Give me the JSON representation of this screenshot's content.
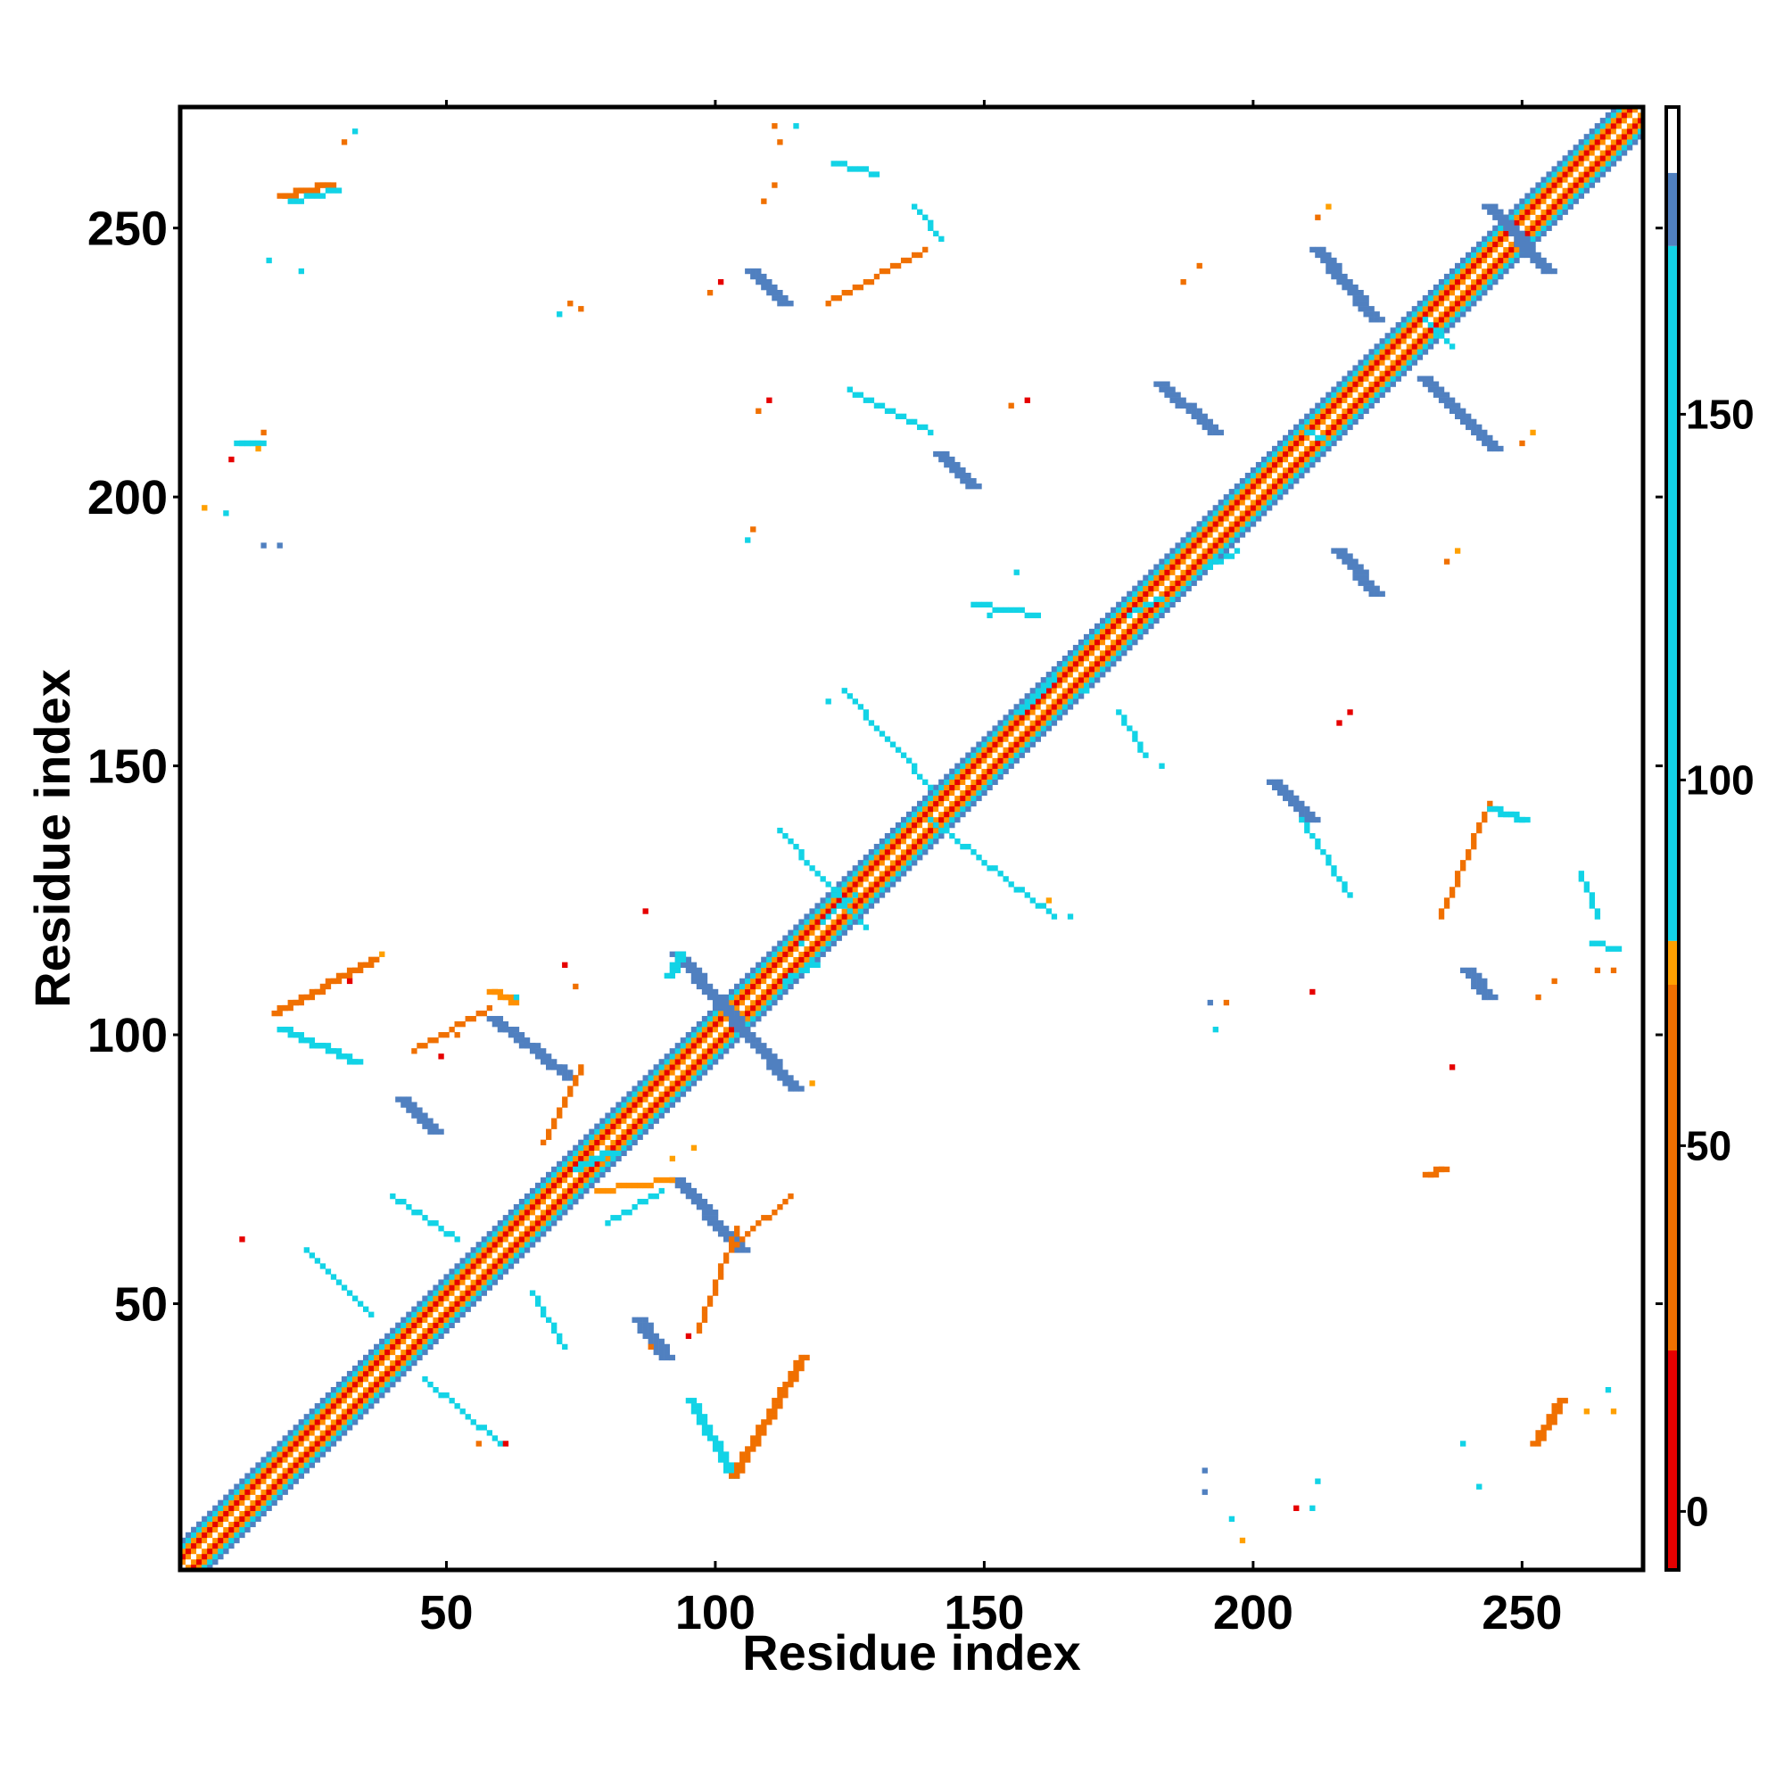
{
  "chart_data": {
    "type": "heatmap",
    "title": "",
    "xlabel": "Residue index",
    "ylabel": "Residue index",
    "xlim": [
      1,
      272
    ],
    "ylim": [
      1,
      272
    ],
    "xticks": [
      50,
      100,
      150,
      200,
      250
    ],
    "yticks": [
      50,
      100,
      150,
      200,
      250
    ],
    "colorbar": {
      "ticks": [
        0,
        50,
        100,
        150
      ],
      "range": [
        -8,
        192
      ],
      "bins": [
        {
          "from": -8,
          "to": 22,
          "color": "#e60000"
        },
        {
          "from": 22,
          "to": 72,
          "color": "#f07000"
        },
        {
          "from": 72,
          "to": 78,
          "color": "#ffa000"
        },
        {
          "from": 78,
          "to": 173,
          "color": "#12d3e6"
        },
        {
          "from": 173,
          "to": 183,
          "color": "#5080c0"
        },
        {
          "from": 183,
          "to": 192,
          "color": "#ffffff"
        }
      ]
    },
    "diagonal_band": {
      "from": 1,
      "to": 272,
      "color_by_offset": [
        "#ffffff",
        "#ff9000",
        "#e60000",
        "#ff9000",
        "#12d3e6",
        "#5080c0"
      ]
    },
    "segments": [
      {
        "x1": 92,
        "y1": 115,
        "x2": 114,
        "y2": 90,
        "color": "#5080c0",
        "width": 3
      },
      {
        "x1": 58,
        "y1": 103,
        "x2": 72,
        "y2": 92,
        "color": "#5080c0",
        "width": 3
      },
      {
        "x1": 92,
        "y1": 73,
        "x2": 104,
        "y2": 60,
        "color": "#5080c0",
        "width": 3
      },
      {
        "x1": 211,
        "y1": 246,
        "x2": 222,
        "y2": 233,
        "color": "#5080c0",
        "width": 3
      },
      {
        "x1": 231,
        "y1": 222,
        "x2": 244,
        "y2": 209,
        "color": "#5080c0",
        "width": 3
      },
      {
        "x1": 182,
        "y1": 221,
        "x2": 192,
        "y2": 212,
        "color": "#5080c0",
        "width": 3
      },
      {
        "x1": 215,
        "y1": 190,
        "x2": 222,
        "y2": 182,
        "color": "#5080c0",
        "width": 3
      },
      {
        "x1": 243,
        "y1": 254,
        "x2": 254,
        "y2": 242,
        "color": "#5080c0",
        "width": 3
      },
      {
        "x1": 203,
        "y1": 147,
        "x2": 210,
        "y2": 140,
        "color": "#5080c0",
        "width": 3
      },
      {
        "x1": 141,
        "y1": 208,
        "x2": 147,
        "y2": 202,
        "color": "#5080c0",
        "width": 3
      },
      {
        "x1": 106,
        "y1": 242,
        "x2": 112,
        "y2": 236,
        "color": "#5080c0",
        "width": 3
      },
      {
        "x1": 41,
        "y1": 88,
        "x2": 47,
        "y2": 82,
        "color": "#5080c0",
        "width": 3
      },
      {
        "x1": 85,
        "y1": 47,
        "x2": 90,
        "y2": 40,
        "color": "#5080c0",
        "width": 3
      },
      {
        "x1": 239,
        "y1": 112,
        "x2": 243,
        "y2": 107,
        "color": "#5080c0",
        "width": 3
      },
      {
        "x1": 18,
        "y1": 104,
        "x2": 36,
        "y2": 114,
        "color": "#f07000",
        "width": 2
      },
      {
        "x1": 19,
        "y1": 101,
        "x2": 33,
        "y2": 95,
        "color": "#12d3e6",
        "width": 2
      },
      {
        "x1": 44,
        "y1": 97,
        "x2": 58,
        "y2": 105,
        "color": "#f07000",
        "width": 1
      },
      {
        "x1": 91,
        "y1": 111,
        "x2": 93,
        "y2": 115,
        "color": "#12d3e6",
        "width": 2
      },
      {
        "x1": 68,
        "y1": 80,
        "x2": 75,
        "y2": 94,
        "color": "#f07000",
        "width": 1
      },
      {
        "x1": 58,
        "y1": 108,
        "x2": 62,
        "y2": 106,
        "color": "#ff9000",
        "width": 2
      },
      {
        "x1": 80,
        "y1": 65,
        "x2": 90,
        "y2": 71,
        "color": "#12d3e6",
        "width": 1
      },
      {
        "x1": 78,
        "y1": 71,
        "x2": 92,
        "y2": 73,
        "color": "#ff9000",
        "width": 1
      },
      {
        "x1": 104,
        "y1": 61,
        "x2": 114,
        "y2": 70,
        "color": "#f07000",
        "width": 1
      },
      {
        "x1": 97,
        "y1": 45,
        "x2": 104,
        "y2": 64,
        "color": "#f07000",
        "width": 1
      },
      {
        "x1": 95,
        "y1": 32,
        "x2": 103,
        "y2": 18,
        "color": "#12d3e6",
        "width": 2
      },
      {
        "x1": 103,
        "y1": 18,
        "x2": 116,
        "y2": 40,
        "color": "#f07000",
        "width": 2
      },
      {
        "x1": 46,
        "y1": 36,
        "x2": 60,
        "y2": 24,
        "color": "#12d3e6",
        "width": 1
      },
      {
        "x1": 24,
        "y1": 60,
        "x2": 36,
        "y2": 48,
        "color": "#12d3e6",
        "width": 1
      },
      {
        "x1": 40,
        "y1": 70,
        "x2": 52,
        "y2": 62,
        "color": "#12d3e6",
        "width": 1
      },
      {
        "x1": 66,
        "y1": 52,
        "x2": 72,
        "y2": 42,
        "color": "#12d3e6",
        "width": 1
      },
      {
        "x1": 124,
        "y1": 164,
        "x2": 141,
        "y2": 145,
        "color": "#12d3e6",
        "width": 1
      },
      {
        "x1": 140,
        "y1": 140,
        "x2": 163,
        "y2": 122,
        "color": "#12d3e6",
        "width": 1
      },
      {
        "x1": 148,
        "y1": 180,
        "x2": 160,
        "y2": 178,
        "color": "#12d3e6",
        "width": 1
      },
      {
        "x1": 175,
        "y1": 160,
        "x2": 180,
        "y2": 152,
        "color": "#12d3e6",
        "width": 1
      },
      {
        "x1": 125,
        "y1": 220,
        "x2": 140,
        "y2": 212,
        "color": "#12d3e6",
        "width": 1
      },
      {
        "x1": 122,
        "y1": 262,
        "x2": 130,
        "y2": 260,
        "color": "#12d3e6",
        "width": 1
      },
      {
        "x1": 137,
        "y1": 254,
        "x2": 142,
        "y2": 248,
        "color": "#12d3e6",
        "width": 1
      },
      {
        "x1": 121,
        "y1": 236,
        "x2": 139,
        "y2": 246,
        "color": "#f07000",
        "width": 1
      },
      {
        "x1": 112,
        "y1": 138,
        "x2": 128,
        "y2": 120,
        "color": "#12d3e6",
        "width": 1
      },
      {
        "x1": 209,
        "y1": 140,
        "x2": 218,
        "y2": 126,
        "color": "#12d3e6",
        "width": 1
      },
      {
        "x1": 235,
        "y1": 122,
        "x2": 244,
        "y2": 143,
        "color": "#f07000",
        "width": 1
      },
      {
        "x1": 244,
        "y1": 142,
        "x2": 250,
        "y2": 140,
        "color": "#12d3e6",
        "width": 2
      },
      {
        "x1": 261,
        "y1": 130,
        "x2": 264,
        "y2": 122,
        "color": "#12d3e6",
        "width": 1
      },
      {
        "x1": 263,
        "y1": 117,
        "x2": 268,
        "y2": 116,
        "color": "#12d3e6",
        "width": 1
      },
      {
        "x1": 252,
        "y1": 24,
        "x2": 257,
        "y2": 32,
        "color": "#f07000",
        "width": 2
      },
      {
        "x1": 11,
        "y1": 210,
        "x2": 15,
        "y2": 210,
        "color": "#12d3e6",
        "width": 2
      },
      {
        "x1": 19,
        "y1": 256,
        "x2": 28,
        "y2": 258,
        "color": "#f07000",
        "width": 2
      },
      {
        "x1": 21,
        "y1": 255,
        "x2": 30,
        "y2": 257,
        "color": "#12d3e6",
        "width": 1
      },
      {
        "x1": 232,
        "y1": 74,
        "x2": 235,
        "y2": 75,
        "color": "#f07000",
        "width": 2
      },
      {
        "x1": 190,
        "y1": 186,
        "x2": 197,
        "y2": 190,
        "color": "#12d3e6",
        "width": 1
      },
      {
        "x1": 209,
        "y1": 213,
        "x2": 214,
        "y2": 210,
        "color": "#12d3e6",
        "width": 1
      },
      {
        "x1": 232,
        "y1": 233,
        "x2": 237,
        "y2": 228,
        "color": "#12d3e6",
        "width": 1
      },
      {
        "x1": 74,
        "y1": 75,
        "x2": 80,
        "y2": 78,
        "color": "#12d3e6",
        "width": 2
      },
      {
        "x1": 120,
        "y1": 121,
        "x2": 126,
        "y2": 126,
        "color": "#12d3e6",
        "width": 1
      },
      {
        "x1": 113,
        "y1": 110,
        "x2": 119,
        "y2": 113,
        "color": "#12d3e6",
        "width": 1
      },
      {
        "x1": 157,
        "y1": 160,
        "x2": 163,
        "y2": 166,
        "color": "#12d3e6",
        "width": 1
      },
      {
        "x1": 177,
        "y1": 178,
        "x2": 183,
        "y2": 181,
        "color": "#12d3e6",
        "width": 1
      }
    ],
    "points": [
      {
        "x": 5,
        "y": 198,
        "color": "#ffa000"
      },
      {
        "x": 9,
        "y": 197,
        "color": "#12d3e6"
      },
      {
        "x": 10,
        "y": 207,
        "color": "#e60000"
      },
      {
        "x": 15,
        "y": 209,
        "color": "#ffa000"
      },
      {
        "x": 16,
        "y": 212,
        "color": "#f07000"
      },
      {
        "x": 16,
        "y": 191,
        "color": "#5080c0"
      },
      {
        "x": 19,
        "y": 191,
        "color": "#5080c0"
      },
      {
        "x": 17,
        "y": 244,
        "color": "#12d3e6"
      },
      {
        "x": 23,
        "y": 242,
        "color": "#12d3e6"
      },
      {
        "x": 31,
        "y": 266,
        "color": "#f07000"
      },
      {
        "x": 33,
        "y": 268,
        "color": "#12d3e6"
      },
      {
        "x": 73,
        "y": 236,
        "color": "#f07000"
      },
      {
        "x": 75,
        "y": 235,
        "color": "#f07000"
      },
      {
        "x": 71,
        "y": 234,
        "color": "#12d3e6"
      },
      {
        "x": 107,
        "y": 194,
        "color": "#f07000"
      },
      {
        "x": 106,
        "y": 192,
        "color": "#12d3e6"
      },
      {
        "x": 108,
        "y": 216,
        "color": "#f07000"
      },
      {
        "x": 110,
        "y": 218,
        "color": "#e60000"
      },
      {
        "x": 99,
        "y": 238,
        "color": "#f07000"
      },
      {
        "x": 101,
        "y": 240,
        "color": "#e60000"
      },
      {
        "x": 109,
        "y": 255,
        "color": "#f07000"
      },
      {
        "x": 111,
        "y": 258,
        "color": "#f07000"
      },
      {
        "x": 112,
        "y": 266,
        "color": "#f07000"
      },
      {
        "x": 115,
        "y": 269,
        "color": "#12d3e6"
      },
      {
        "x": 111,
        "y": 269,
        "color": "#f07000"
      },
      {
        "x": 155,
        "y": 217,
        "color": "#f07000"
      },
      {
        "x": 158,
        "y": 218,
        "color": "#e60000"
      },
      {
        "x": 156,
        "y": 186,
        "color": "#12d3e6"
      },
      {
        "x": 187,
        "y": 240,
        "color": "#f07000"
      },
      {
        "x": 190,
        "y": 243,
        "color": "#f07000"
      },
      {
        "x": 212,
        "y": 252,
        "color": "#f07000"
      },
      {
        "x": 214,
        "y": 254,
        "color": "#ffa000"
      },
      {
        "x": 216,
        "y": 158,
        "color": "#e60000"
      },
      {
        "x": 218,
        "y": 160,
        "color": "#e60000"
      },
      {
        "x": 183,
        "y": 150,
        "color": "#12d3e6"
      },
      {
        "x": 211,
        "y": 108,
        "color": "#e60000"
      },
      {
        "x": 192,
        "y": 106,
        "color": "#5080c0"
      },
      {
        "x": 195,
        "y": 106,
        "color": "#f07000"
      },
      {
        "x": 193,
        "y": 101,
        "color": "#12d3e6"
      },
      {
        "x": 237,
        "y": 94,
        "color": "#e60000"
      },
      {
        "x": 253,
        "y": 107,
        "color": "#f07000"
      },
      {
        "x": 256,
        "y": 110,
        "color": "#f07000"
      },
      {
        "x": 264,
        "y": 112,
        "color": "#f07000"
      },
      {
        "x": 267,
        "y": 112,
        "color": "#f07000"
      },
      {
        "x": 236,
        "y": 188,
        "color": "#f07000"
      },
      {
        "x": 238,
        "y": 190,
        "color": "#ffa000"
      },
      {
        "x": 252,
        "y": 212,
        "color": "#ffa000"
      },
      {
        "x": 250,
        "y": 210,
        "color": "#f07000"
      },
      {
        "x": 191,
        "y": 19,
        "color": "#5080c0"
      },
      {
        "x": 191,
        "y": 15,
        "color": "#5080c0"
      },
      {
        "x": 196,
        "y": 10,
        "color": "#12d3e6"
      },
      {
        "x": 198,
        "y": 6,
        "color": "#ffa000"
      },
      {
        "x": 208,
        "y": 12,
        "color": "#e60000"
      },
      {
        "x": 211,
        "y": 12,
        "color": "#12d3e6"
      },
      {
        "x": 212,
        "y": 17,
        "color": "#12d3e6"
      },
      {
        "x": 239,
        "y": 24,
        "color": "#12d3e6"
      },
      {
        "x": 242,
        "y": 16,
        "color": "#12d3e6"
      },
      {
        "x": 262,
        "y": 30,
        "color": "#ffa000"
      },
      {
        "x": 266,
        "y": 34,
        "color": "#12d3e6"
      },
      {
        "x": 267,
        "y": 30,
        "color": "#ffa000"
      },
      {
        "x": 12,
        "y": 62,
        "color": "#e60000"
      },
      {
        "x": 56,
        "y": 24,
        "color": "#f07000"
      },
      {
        "x": 61,
        "y": 24,
        "color": "#e60000"
      },
      {
        "x": 88,
        "y": 42,
        "color": "#f07000"
      },
      {
        "x": 95,
        "y": 44,
        "color": "#e60000"
      },
      {
        "x": 92,
        "y": 77,
        "color": "#ffa000"
      },
      {
        "x": 96,
        "y": 79,
        "color": "#ffa000"
      },
      {
        "x": 72,
        "y": 113,
        "color": "#e60000"
      },
      {
        "x": 74,
        "y": 109,
        "color": "#f07000"
      },
      {
        "x": 63,
        "y": 107,
        "color": "#12d3e6"
      },
      {
        "x": 87,
        "y": 123,
        "color": "#e60000"
      },
      {
        "x": 118,
        "y": 91,
        "color": "#ffa000"
      },
      {
        "x": 116,
        "y": 117,
        "color": "#12d3e6"
      },
      {
        "x": 38,
        "y": 115,
        "color": "#ffa000"
      },
      {
        "x": 32,
        "y": 110,
        "color": "#e60000"
      },
      {
        "x": 49,
        "y": 96,
        "color": "#e60000"
      },
      {
        "x": 52,
        "y": 100,
        "color": "#f07000"
      },
      {
        "x": 121,
        "y": 162,
        "color": "#12d3e6"
      },
      {
        "x": 151,
        "y": 178,
        "color": "#12d3e6"
      },
      {
        "x": 169,
        "y": 164,
        "color": "#12d3e6"
      },
      {
        "x": 166,
        "y": 122,
        "color": "#12d3e6"
      },
      {
        "x": 162,
        "y": 125,
        "color": "#ffa000"
      }
    ]
  }
}
